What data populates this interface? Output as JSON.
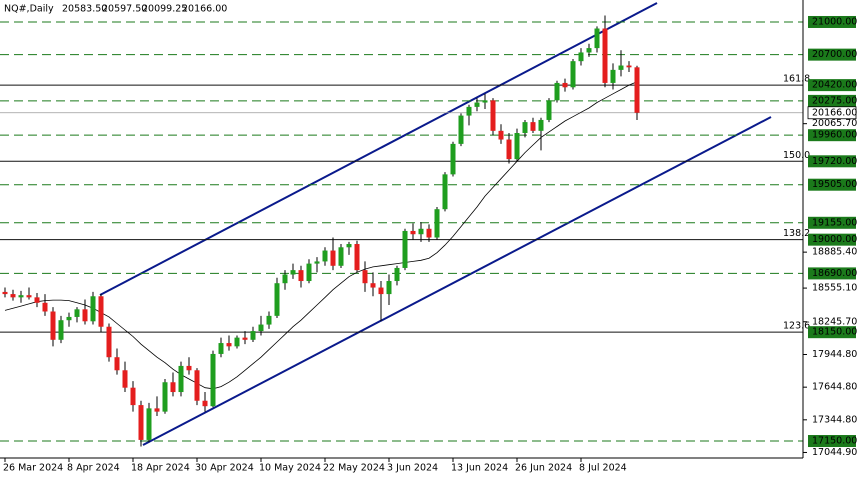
{
  "chart_data": {
    "type": "candlestick",
    "title": "NQ#,Daily",
    "last_bar_labels": [
      "20583.50",
      "20597.50",
      "20099.25",
      "20166.00"
    ],
    "categories": [
      "26 Mar 2024",
      null,
      null,
      null,
      null,
      null,
      null,
      null,
      "8 Apr 2024",
      null,
      null,
      null,
      null,
      null,
      null,
      null,
      "18 Apr 2024",
      null,
      null,
      null,
      null,
      null,
      null,
      null,
      "30 Apr 2024",
      null,
      null,
      null,
      null,
      null,
      null,
      null,
      "10 May 2024",
      null,
      null,
      null,
      null,
      null,
      null,
      null,
      "22 May 2024",
      null,
      null,
      null,
      null,
      null,
      null,
      null,
      "3 Jun 2024",
      null,
      null,
      null,
      null,
      null,
      null,
      null,
      "13 Jun 2024",
      null,
      null,
      null,
      null,
      null,
      null,
      null,
      "26 Jun 2024",
      null,
      null,
      null,
      null,
      null,
      null,
      null,
      "8 Jul 2024",
      null,
      null,
      null,
      null,
      null,
      null,
      null
    ],
    "open": [
      18520,
      18500,
      18470,
      18490,
      18470,
      18420,
      18340,
      18080,
      18260,
      18290,
      18360,
      18250,
      18480,
      18200,
      17920,
      17800,
      17640,
      17480,
      17160,
      17450,
      17420,
      17690,
      17600,
      17840,
      17800,
      17520,
      17470,
      17950,
      18050,
      18020,
      18100,
      18080,
      18160,
      18220,
      18300,
      18600,
      18680,
      18720,
      18620,
      18780,
      18800,
      18900,
      18760,
      18930,
      18960,
      18720,
      18600,
      18560,
      18500,
      18620,
      18740,
      19080,
      19050,
      19100,
      19020,
      19280,
      19600,
      19880,
      20140,
      20220,
      20260,
      20280,
      20000,
      19920,
      19740,
      19980,
      20080,
      20000,
      20100,
      20280,
      20440,
      20400,
      20640,
      20720,
      20760,
      20940,
      20440,
      20560,
      20600,
      20583.5
    ],
    "high": [
      18560,
      18540,
      18530,
      18560,
      18510,
      18500,
      18380,
      18300,
      18330,
      18380,
      18450,
      18520,
      18500,
      18230,
      18000,
      17880,
      17700,
      17520,
      17500,
      17560,
      17720,
      17780,
      17880,
      17920,
      17820,
      17600,
      17980,
      18100,
      18120,
      18120,
      18160,
      18200,
      18300,
      18340,
      18650,
      18720,
      18780,
      18760,
      18820,
      18840,
      18930,
      19020,
      18960,
      18980,
      18990,
      18800,
      18700,
      18620,
      18680,
      18760,
      19100,
      19150,
      19160,
      19140,
      19300,
      19620,
      19900,
      20160,
      20240,
      20300,
      20340,
      20300,
      20060,
      19980,
      20020,
      20100,
      20120,
      20120,
      20300,
      20460,
      20480,
      20660,
      20760,
      20800,
      20960,
      21060,
      20620,
      20740,
      20640,
      20597.5
    ],
    "low": [
      18470,
      18440,
      18420,
      18450,
      18380,
      18300,
      18020,
      18050,
      18200,
      18240,
      18220,
      18220,
      18150,
      17880,
      17760,
      17600,
      17420,
      17100,
      17140,
      17380,
      17400,
      17560,
      17560,
      17760,
      17480,
      17420,
      17460,
      17920,
      17980,
      18000,
      18040,
      18060,
      18120,
      18180,
      18280,
      18540,
      18640,
      18560,
      18600,
      18700,
      18760,
      18720,
      18740,
      18860,
      18700,
      18520,
      18480,
      18250,
      18400,
      18580,
      18720,
      19000,
      18980,
      18980,
      19000,
      19260,
      19580,
      19860,
      20050,
      20180,
      20200,
      19960,
      19880,
      19700,
      19720,
      19940,
      19980,
      19820,
      20080,
      20260,
      20360,
      20380,
      20600,
      20680,
      20720,
      20400,
      20380,
      20500,
      20540,
      20099.25
    ],
    "close": [
      18500,
      18470,
      18490,
      18470,
      18420,
      18340,
      18080,
      18260,
      18290,
      18360,
      18250,
      18480,
      18200,
      17920,
      17800,
      17640,
      17480,
      17160,
      17450,
      17420,
      17690,
      17600,
      17840,
      17800,
      17520,
      17470,
      17950,
      18050,
      18020,
      18100,
      18080,
      18160,
      18220,
      18300,
      18600,
      18680,
      18720,
      18620,
      18780,
      18800,
      18900,
      18760,
      18930,
      18960,
      18720,
      18600,
      18560,
      18500,
      18620,
      18740,
      19080,
      19050,
      19100,
      19020,
      19280,
      19600,
      19880,
      20140,
      20220,
      20260,
      20280,
      20000,
      19920,
      19740,
      19980,
      20080,
      20000,
      20100,
      20280,
      20440,
      20400,
      20640,
      20720,
      20760,
      20940,
      20440,
      20560,
      20600,
      20583.5,
      20166
    ],
    "up_color": "#1f9e1f",
    "down_color": "#e41e1e",
    "ma": {
      "color": "#000000",
      "values": [
        18350,
        18370,
        18390,
        18410,
        18430,
        18440,
        18445,
        18445,
        18440,
        18420,
        18400,
        18370,
        18330,
        18290,
        18230,
        18170,
        18110,
        18040,
        17980,
        17920,
        17870,
        17810,
        17760,
        17720,
        17680,
        17640,
        17630,
        17650,
        17690,
        17740,
        17800,
        17860,
        17920,
        17990,
        18060,
        18130,
        18200,
        18260,
        18330,
        18400,
        18470,
        18540,
        18600,
        18660,
        18700,
        18730,
        18750,
        18760,
        18770,
        18780,
        18790,
        18800,
        18810,
        18830,
        18880,
        18950,
        19030,
        19120,
        19210,
        19300,
        19400,
        19480,
        19560,
        19640,
        19720,
        19800,
        19870,
        19940,
        19990,
        20040,
        20090,
        20130,
        20170,
        20210,
        20260,
        20300,
        20340,
        20380,
        20420,
        20450
      ]
    },
    "ylim": [
      16994,
      21202
    ],
    "yticks": [
      {
        "value": 17044.9,
        "label": "17044.90"
      },
      {
        "value": 17344.8,
        "label": "17344.80"
      },
      {
        "value": 17644.8,
        "label": "17644.80"
      },
      {
        "value": 17944.8,
        "label": "17944.80"
      },
      {
        "value": 18245.7,
        "label": "18245.70"
      },
      {
        "value": 18555.1,
        "label": "18555.10"
      },
      {
        "value": 18885.4,
        "label": "18885.40"
      },
      {
        "value": 20065.7,
        "label": "20065.70"
      }
    ],
    "levels": [
      {
        "value": 21000,
        "label": "21000.00",
        "style": "dashed"
      },
      {
        "value": 20700,
        "label": "20700.00",
        "style": "dashed"
      },
      {
        "value": 20420,
        "label": "20420.00",
        "style": "solid",
        "fib": "161.8"
      },
      {
        "value": 20275,
        "label": "20275.00",
        "style": "dashed"
      },
      {
        "value": 20166,
        "label": "20166.00",
        "style": "current"
      },
      {
        "value": 19960,
        "label": "19960.00",
        "style": "dashed"
      },
      {
        "value": 19720,
        "label": "19720.00",
        "style": "solid",
        "fib": "150.0"
      },
      {
        "value": 19505,
        "label": "19505.00",
        "style": "dashed"
      },
      {
        "value": 19155,
        "label": "19155.00",
        "style": "dashed"
      },
      {
        "value": 19000,
        "label": "19000.00",
        "style": "solid",
        "fib": "138.2"
      },
      {
        "value": 18690,
        "label": "18690.00",
        "style": "dashed"
      },
      {
        "value": 18150,
        "label": "18150.00",
        "style": "solid",
        "fib": "123.6"
      },
      {
        "value": 17150,
        "label": "17150.00",
        "style": "dashed"
      }
    ],
    "level_color": "#1b7a1b"
  }
}
